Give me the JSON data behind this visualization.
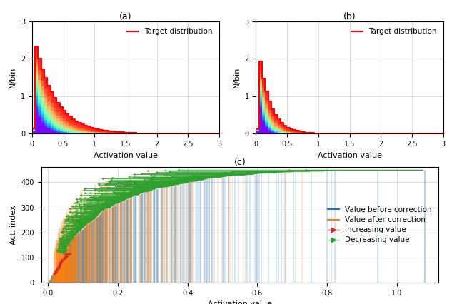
{
  "fig_title_a": "(a)",
  "fig_title_b": "(b)",
  "fig_title_c": "(c)",
  "xlabel_hist": "Activation value",
  "ylabel_hist": "N/bin",
  "xlabel_scatter": "Activation value",
  "ylabel_scatter": "Act. index",
  "xlim_hist": [
    0,
    3
  ],
  "ylim_hist": [
    0,
    3
  ],
  "xlim_scatter": [
    -0.02,
    1.12
  ],
  "ylim_scatter": [
    0,
    460
  ],
  "legend_target": "Target distribution",
  "legend_before": "Value before correction",
  "legend_after": "Value after correction",
  "legend_increase": "Increasing value",
  "legend_decrease": "Decreasing value",
  "color_target": "#ff0000",
  "color_before": "#1f77b4",
  "color_after": "#ff7f0e",
  "color_increase": "#d62728",
  "color_decrease": "#2ca02c",
  "num_hists": 16,
  "n_activations": 450
}
